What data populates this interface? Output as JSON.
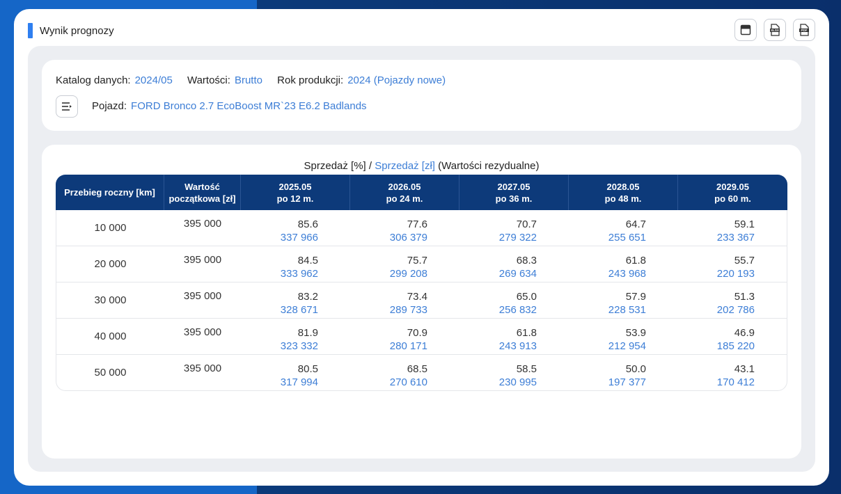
{
  "panel": {
    "title": "Wynik prognozy"
  },
  "toolbar": {
    "icons": [
      "window-icon",
      "xlsx-file-icon",
      "pdf-file-icon"
    ]
  },
  "info": {
    "catalog_label": "Katalog danych:",
    "catalog_value": "2024/05",
    "values_label": "Wartości:",
    "values_value": "Brutto",
    "year_label": "Rok produkcji:",
    "year_value": "2024 (Pojazdy nowe)",
    "vehicle_label": "Pojazd:",
    "vehicle_value": "FORD Bronco 2.7 EcoBoost MR`23 E6.2 Badlands"
  },
  "table": {
    "caption_pct": "Sprzedaż [%]",
    "caption_sep": " / ",
    "caption_pln": "Sprzedaż [zł]",
    "caption_suffix": " (Wartości rezydualne)",
    "headers": [
      {
        "line1": "Przebieg roczny [km]",
        "line2": ""
      },
      {
        "line1": "Wartość",
        "line2": "początkowa [zł]"
      },
      {
        "line1": "2025.05",
        "line2": "po 12 m."
      },
      {
        "line1": "2026.05",
        "line2": "po 24 m."
      },
      {
        "line1": "2027.05",
        "line2": "po 36 m."
      },
      {
        "line1": "2028.05",
        "line2": "po 48 m."
      },
      {
        "line1": "2029.05",
        "line2": "po 60 m."
      }
    ],
    "rows": [
      {
        "km": "10 000",
        "initial": "395 000",
        "cells": [
          {
            "pct": "85.6",
            "pln": "337 966"
          },
          {
            "pct": "77.6",
            "pln": "306 379"
          },
          {
            "pct": "70.7",
            "pln": "279 322"
          },
          {
            "pct": "64.7",
            "pln": "255 651"
          },
          {
            "pct": "59.1",
            "pln": "233 367"
          }
        ]
      },
      {
        "km": "20 000",
        "initial": "395 000",
        "cells": [
          {
            "pct": "84.5",
            "pln": "333 962"
          },
          {
            "pct": "75.7",
            "pln": "299 208"
          },
          {
            "pct": "68.3",
            "pln": "269 634"
          },
          {
            "pct": "61.8",
            "pln": "243 968"
          },
          {
            "pct": "55.7",
            "pln": "220 193"
          }
        ]
      },
      {
        "km": "30 000",
        "initial": "395 000",
        "cells": [
          {
            "pct": "83.2",
            "pln": "328 671"
          },
          {
            "pct": "73.4",
            "pln": "289 733"
          },
          {
            "pct": "65.0",
            "pln": "256 832"
          },
          {
            "pct": "57.9",
            "pln": "228 531"
          },
          {
            "pct": "51.3",
            "pln": "202 786"
          }
        ]
      },
      {
        "km": "40 000",
        "initial": "395 000",
        "cells": [
          {
            "pct": "81.9",
            "pln": "323 332"
          },
          {
            "pct": "70.9",
            "pln": "280 171"
          },
          {
            "pct": "61.8",
            "pln": "243 913"
          },
          {
            "pct": "53.9",
            "pln": "212 954"
          },
          {
            "pct": "46.9",
            "pln": "185 220"
          }
        ]
      },
      {
        "km": "50 000",
        "initial": "395 000",
        "cells": [
          {
            "pct": "80.5",
            "pln": "317 994"
          },
          {
            "pct": "68.5",
            "pln": "270 610"
          },
          {
            "pct": "58.5",
            "pln": "230 995"
          },
          {
            "pct": "50.0",
            "pln": "197 377"
          },
          {
            "pct": "43.1",
            "pln": "170 412"
          }
        ]
      }
    ]
  },
  "colors": {
    "accent": "#2f7ff0",
    "link": "#3d7ed6",
    "header_bg": "#0d3a7a"
  }
}
